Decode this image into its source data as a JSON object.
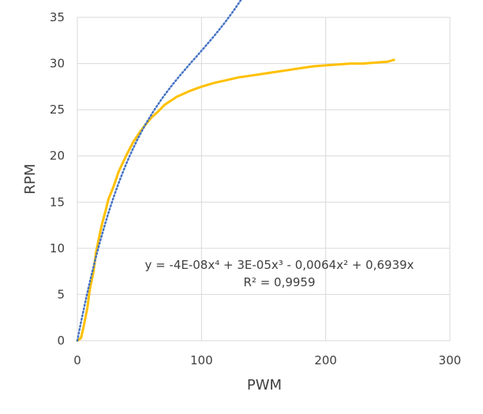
{
  "chart_data": {
    "type": "line",
    "title": "",
    "xlabel": "PWM",
    "ylabel": "RPM",
    "xlim": [
      0,
      300
    ],
    "ylim": [
      0,
      35
    ],
    "x_ticks": [
      0,
      100,
      200,
      300
    ],
    "y_ticks": [
      0,
      5,
      10,
      15,
      20,
      25,
      30,
      35
    ],
    "grid": true,
    "legend": "none",
    "series": [
      {
        "kind": "measured",
        "style": "solid",
        "color": "#FFC000",
        "x": [
          0,
          3,
          5,
          8,
          10,
          13,
          15,
          18,
          20,
          23,
          25,
          28,
          30,
          33,
          35,
          40,
          45,
          50,
          55,
          60,
          65,
          70,
          80,
          90,
          100,
          110,
          120,
          130,
          140,
          150,
          160,
          170,
          180,
          190,
          200,
          210,
          220,
          230,
          240,
          250,
          255
        ],
        "y": [
          0,
          0.3,
          1.5,
          3.5,
          5.5,
          7.5,
          9.5,
          11.5,
          12.7,
          14.2,
          15.3,
          16.3,
          17,
          18.2,
          18.8,
          20.2,
          21.5,
          22.5,
          23.4,
          24.2,
          24.8,
          25.5,
          26.4,
          27,
          27.5,
          27.9,
          28.2,
          28.5,
          28.7,
          28.9,
          29.1,
          29.3,
          29.5,
          29.7,
          29.8,
          29.9,
          30,
          30,
          30.1,
          30.2,
          30.4
        ]
      },
      {
        "kind": "trendline",
        "style": "dotted",
        "color": "#4472C4",
        "polynomial_coefficients": [
          0,
          0.6939,
          -0.0064,
          3e-05,
          -4e-08
        ],
        "x_range": [
          0,
          255
        ]
      }
    ],
    "annotations": {
      "equation": "y = -4E-08x⁴ + 3E-05x³ - 0,0064x² + 0,6939x",
      "r_squared": "R² = 0,9959"
    }
  }
}
